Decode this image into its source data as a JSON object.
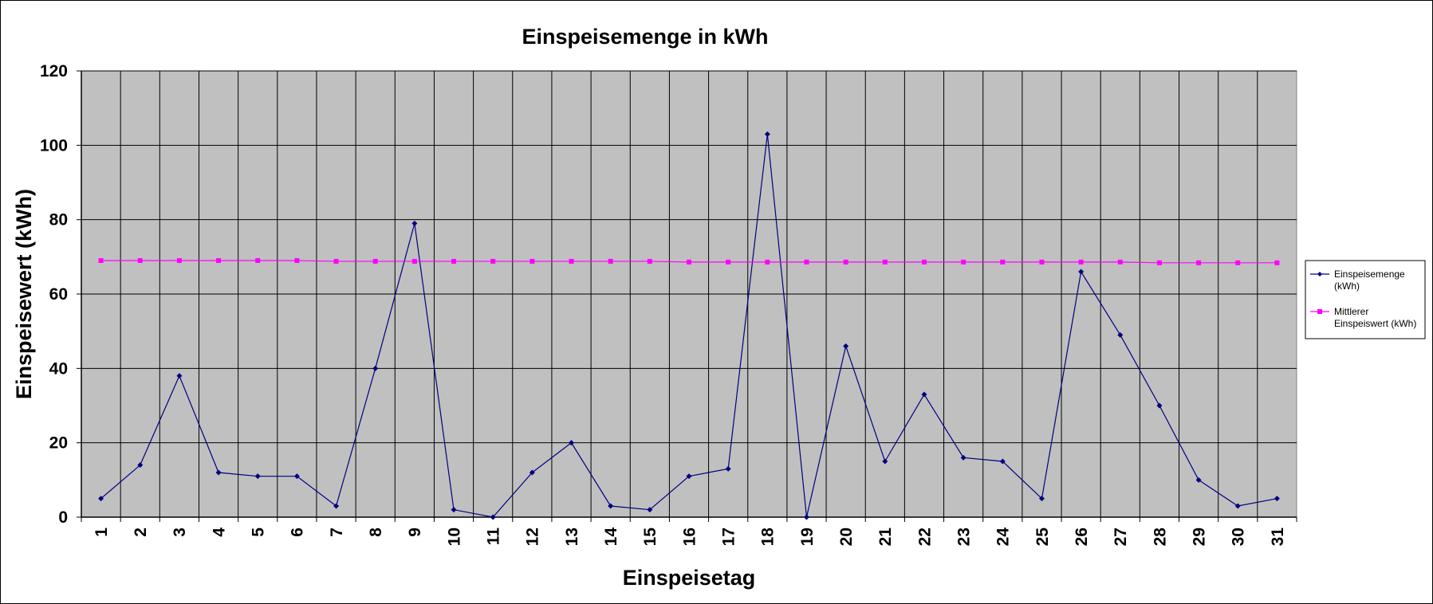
{
  "chart_data": {
    "type": "line",
    "title": "Einspeisemenge in kWh",
    "xlabel": "Einspeisetag",
    "ylabel": "Einspeisewert  (kWh)",
    "ylim": [
      0,
      120
    ],
    "yticks": [
      0,
      20,
      40,
      60,
      80,
      100,
      120
    ],
    "grid": true,
    "legend_position": "right",
    "plot_background": "#c0c0c0",
    "categories": [
      "1",
      "2",
      "3",
      "4",
      "5",
      "6",
      "7",
      "8",
      "9",
      "10",
      "11",
      "12",
      "13",
      "14",
      "15",
      "16",
      "17",
      "18",
      "19",
      "20",
      "21",
      "22",
      "23",
      "24",
      "25",
      "26",
      "27",
      "28",
      "29",
      "30",
      "31"
    ],
    "series": [
      {
        "name": "Einspeisemenge (kWh)",
        "legend_lines": [
          "Einspeisemenge",
          "(kWh)"
        ],
        "color": "#000080",
        "marker": "diamond",
        "values": [
          5,
          14,
          38,
          12,
          11,
          11,
          3,
          40,
          79,
          2,
          0,
          12,
          20,
          3,
          2,
          11,
          13,
          103,
          0,
          46,
          15,
          33,
          16,
          15,
          5,
          66,
          49,
          30,
          10,
          3,
          5
        ]
      },
      {
        "name": "Mittlerer Einspeiswert (kWh)",
        "legend_lines": [
          "Mittlerer",
          "Einspeiswert (kWh)"
        ],
        "color": "#ff00ff",
        "marker": "square",
        "values": [
          69,
          69,
          69,
          69,
          69,
          69,
          68.8,
          68.8,
          68.8,
          68.8,
          68.8,
          68.8,
          68.8,
          68.8,
          68.8,
          68.6,
          68.6,
          68.6,
          68.6,
          68.6,
          68.6,
          68.6,
          68.6,
          68.6,
          68.6,
          68.6,
          68.6,
          68.4,
          68.4,
          68.4,
          68.4
        ]
      }
    ]
  }
}
